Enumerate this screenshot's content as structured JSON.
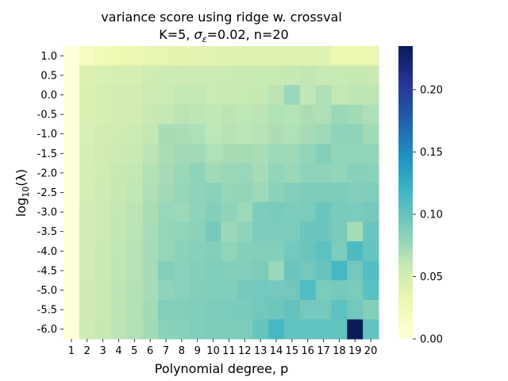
{
  "chart_data": {
    "type": "heatmap",
    "title_line1": "variance score using ridge w. crossval",
    "title_line2": "K=5,  σε=0.02,  n=20",
    "title_line2_parts": {
      "prefix": "K=5,  ",
      "sigma": "σ",
      "sub": "ε",
      "suffix": "=0.02,  n=20"
    },
    "xlabel": "Polynomial degree, p",
    "ylabel_main": "log",
    "ylabel_sub": "10",
    "ylabel_paren": "(λ)",
    "x": [
      "1",
      "2",
      "3",
      "4",
      "5",
      "6",
      "7",
      "8",
      "9",
      "10",
      "11",
      "12",
      "13",
      "14",
      "15",
      "16",
      "17",
      "18",
      "19",
      "20"
    ],
    "y": [
      "1.0",
      "0.5",
      "0.0",
      "-0.5",
      "-1.0",
      "-1.5",
      "-2.0",
      "-2.5",
      "-3.0",
      "-3.5",
      "-4.0",
      "-4.5",
      "-5.0",
      "-5.5",
      "-6.0"
    ],
    "values": [
      [
        0.001,
        0.016,
        0.024,
        0.028,
        0.03,
        0.034,
        0.035,
        0.036,
        0.037,
        0.038,
        0.039,
        0.04,
        0.04,
        0.041,
        0.041,
        0.041,
        0.04,
        0.03,
        0.03,
        0.031
      ],
      [
        0.001,
        0.042,
        0.046,
        0.048,
        0.049,
        0.053,
        0.054,
        0.055,
        0.055,
        0.055,
        0.056,
        0.057,
        0.057,
        0.058,
        0.059,
        0.061,
        0.058,
        0.058,
        0.059,
        0.058
      ],
      [
        0.001,
        0.044,
        0.048,
        0.05,
        0.051,
        0.055,
        0.056,
        0.06,
        0.06,
        0.055,
        0.057,
        0.058,
        0.059,
        0.064,
        0.078,
        0.062,
        0.069,
        0.06,
        0.063,
        0.063
      ],
      [
        0.001,
        0.045,
        0.049,
        0.051,
        0.052,
        0.058,
        0.06,
        0.065,
        0.063,
        0.061,
        0.064,
        0.062,
        0.064,
        0.068,
        0.066,
        0.07,
        0.069,
        0.077,
        0.073,
        0.069
      ],
      [
        0.001,
        0.046,
        0.051,
        0.053,
        0.055,
        0.06,
        0.072,
        0.07,
        0.069,
        0.062,
        0.066,
        0.063,
        0.066,
        0.07,
        0.068,
        0.072,
        0.075,
        0.082,
        0.082,
        0.073
      ],
      [
        0.001,
        0.047,
        0.052,
        0.056,
        0.058,
        0.064,
        0.07,
        0.074,
        0.074,
        0.068,
        0.072,
        0.072,
        0.07,
        0.075,
        0.075,
        0.08,
        0.086,
        0.08,
        0.08,
        0.08
      ],
      [
        0.001,
        0.048,
        0.053,
        0.058,
        0.06,
        0.067,
        0.072,
        0.077,
        0.082,
        0.074,
        0.077,
        0.078,
        0.072,
        0.08,
        0.077,
        0.082,
        0.082,
        0.08,
        0.085,
        0.084
      ],
      [
        0.001,
        0.049,
        0.054,
        0.059,
        0.062,
        0.069,
        0.074,
        0.079,
        0.082,
        0.084,
        0.079,
        0.08,
        0.076,
        0.083,
        0.087,
        0.089,
        0.089,
        0.09,
        0.087,
        0.088
      ],
      [
        0.001,
        0.05,
        0.055,
        0.06,
        0.064,
        0.07,
        0.078,
        0.076,
        0.082,
        0.086,
        0.082,
        0.076,
        0.089,
        0.092,
        0.09,
        0.091,
        0.098,
        0.092,
        0.091,
        0.093
      ],
      [
        0.001,
        0.05,
        0.056,
        0.061,
        0.065,
        0.071,
        0.079,
        0.081,
        0.083,
        0.093,
        0.077,
        0.082,
        0.09,
        0.09,
        0.091,
        0.097,
        0.097,
        0.092,
        0.072,
        0.098
      ],
      [
        0.001,
        0.051,
        0.057,
        0.062,
        0.066,
        0.072,
        0.079,
        0.083,
        0.085,
        0.087,
        0.081,
        0.086,
        0.087,
        0.087,
        0.094,
        0.098,
        0.104,
        0.09,
        0.112,
        0.099
      ],
      [
        0.001,
        0.051,
        0.057,
        0.063,
        0.066,
        0.072,
        0.086,
        0.084,
        0.086,
        0.088,
        0.087,
        0.087,
        0.089,
        0.078,
        0.098,
        0.094,
        0.099,
        0.115,
        0.094,
        0.109
      ],
      [
        0.001,
        0.052,
        0.058,
        0.064,
        0.067,
        0.072,
        0.082,
        0.084,
        0.087,
        0.088,
        0.088,
        0.093,
        0.094,
        0.093,
        0.094,
        0.11,
        0.091,
        0.093,
        0.091,
        0.105
      ],
      [
        0.001,
        0.052,
        0.058,
        0.064,
        0.067,
        0.073,
        0.087,
        0.087,
        0.088,
        0.089,
        0.091,
        0.092,
        0.094,
        0.096,
        0.101,
        0.093,
        0.093,
        0.104,
        0.094,
        0.086
      ],
      [
        0.001,
        0.053,
        0.059,
        0.064,
        0.068,
        0.073,
        0.084,
        0.085,
        0.088,
        0.089,
        0.089,
        0.09,
        0.1,
        0.115,
        0.102,
        0.102,
        0.102,
        0.102,
        0.235,
        0.102
      ]
    ],
    "colorbar": {
      "vmin": 0.0,
      "vmax": 0.235,
      "ticks": [
        0.0,
        0.05,
        0.1,
        0.15,
        0.2
      ],
      "tick_labels": [
        "0.00",
        "0.05",
        "0.10",
        "0.15",
        "0.20"
      ],
      "colormap": "YlGnBu"
    },
    "grid": false,
    "legend": "none"
  }
}
